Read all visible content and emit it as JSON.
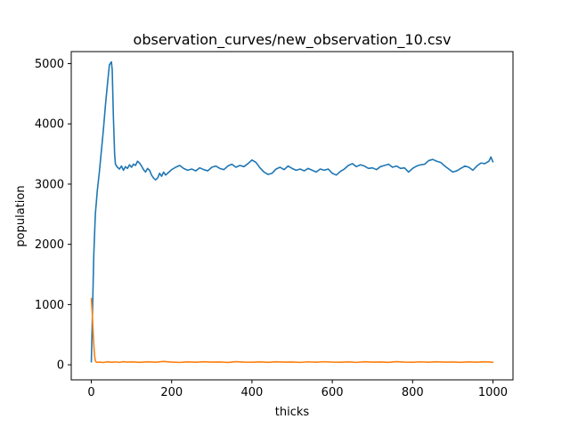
{
  "chart_data": {
    "type": "line",
    "title": "observation_curves/new_observation_10.csv",
    "xlabel": "thicks",
    "ylabel": "population",
    "xlim": [
      -50,
      1050
    ],
    "ylim": [
      -250,
      5200
    ],
    "xticks": [
      0,
      200,
      400,
      600,
      800,
      1000
    ],
    "yticks": [
      0,
      1000,
      2000,
      3000,
      4000,
      5000
    ],
    "grid": false,
    "legend": "none",
    "series": [
      {
        "color": "#1f77b4",
        "x": [
          0,
          3,
          6,
          10,
          15,
          20,
          25,
          30,
          35,
          40,
          45,
          50,
          52,
          55,
          58,
          60,
          65,
          70,
          75,
          80,
          85,
          90,
          95,
          100,
          105,
          110,
          115,
          120,
          125,
          130,
          135,
          140,
          145,
          150,
          155,
          160,
          165,
          170,
          175,
          180,
          185,
          190,
          195,
          200,
          210,
          220,
          230,
          240,
          250,
          260,
          270,
          280,
          290,
          300,
          310,
          320,
          330,
          340,
          350,
          360,
          370,
          380,
          390,
          400,
          410,
          420,
          430,
          440,
          450,
          460,
          470,
          480,
          490,
          500,
          510,
          520,
          530,
          540,
          550,
          560,
          570,
          580,
          590,
          600,
          610,
          620,
          630,
          640,
          650,
          660,
          670,
          680,
          690,
          700,
          710,
          720,
          730,
          740,
          750,
          760,
          770,
          780,
          790,
          800,
          810,
          820,
          830,
          840,
          850,
          860,
          870,
          880,
          890,
          900,
          910,
          920,
          930,
          940,
          950,
          960,
          970,
          980,
          990,
          995,
          1000
        ],
        "y": [
          50,
          900,
          1800,
          2500,
          2900,
          3200,
          3550,
          3900,
          4300,
          4650,
          4980,
          5030,
          4900,
          4100,
          3500,
          3330,
          3280,
          3250,
          3300,
          3230,
          3290,
          3260,
          3320,
          3280,
          3330,
          3310,
          3380,
          3350,
          3300,
          3240,
          3200,
          3260,
          3230,
          3150,
          3100,
          3070,
          3100,
          3180,
          3130,
          3200,
          3150,
          3180,
          3210,
          3240,
          3280,
          3310,
          3260,
          3230,
          3250,
          3220,
          3270,
          3240,
          3220,
          3280,
          3300,
          3260,
          3240,
          3300,
          3330,
          3280,
          3310,
          3290,
          3340,
          3400,
          3360,
          3270,
          3200,
          3160,
          3180,
          3250,
          3280,
          3240,
          3300,
          3260,
          3230,
          3250,
          3220,
          3260,
          3230,
          3200,
          3250,
          3230,
          3250,
          3180,
          3150,
          3210,
          3250,
          3310,
          3340,
          3290,
          3320,
          3300,
          3260,
          3270,
          3240,
          3290,
          3310,
          3330,
          3280,
          3300,
          3260,
          3270,
          3200,
          3260,
          3300,
          3320,
          3330,
          3390,
          3410,
          3380,
          3360,
          3300,
          3250,
          3200,
          3220,
          3260,
          3300,
          3280,
          3230,
          3300,
          3350,
          3340,
          3380,
          3450,
          3370
        ]
      },
      {
        "color": "#ff7f0e",
        "x": [
          0,
          2,
          4,
          6,
          8,
          10,
          12,
          15,
          20,
          30,
          40,
          50,
          60,
          70,
          80,
          90,
          100,
          120,
          140,
          160,
          180,
          200,
          220,
          240,
          260,
          280,
          300,
          320,
          340,
          360,
          380,
          400,
          420,
          440,
          460,
          480,
          500,
          520,
          540,
          560,
          580,
          600,
          620,
          640,
          660,
          680,
          700,
          720,
          740,
          760,
          780,
          800,
          820,
          840,
          860,
          880,
          900,
          920,
          940,
          960,
          980,
          1000
        ],
        "y": [
          1100,
          900,
          600,
          350,
          160,
          70,
          45,
          40,
          45,
          38,
          50,
          42,
          47,
          40,
          52,
          44,
          48,
          41,
          50,
          43,
          55,
          45,
          40,
          48,
          42,
          50,
          44,
          47,
          39,
          52,
          45,
          43,
          48,
          41,
          50,
          44,
          46,
          40,
          49,
          43,
          51,
          45,
          42,
          48,
          40,
          50,
          44,
          47,
          41,
          52,
          45,
          43,
          49,
          42,
          50,
          44,
          46,
          41,
          48,
          43,
          50,
          42
        ]
      }
    ]
  }
}
